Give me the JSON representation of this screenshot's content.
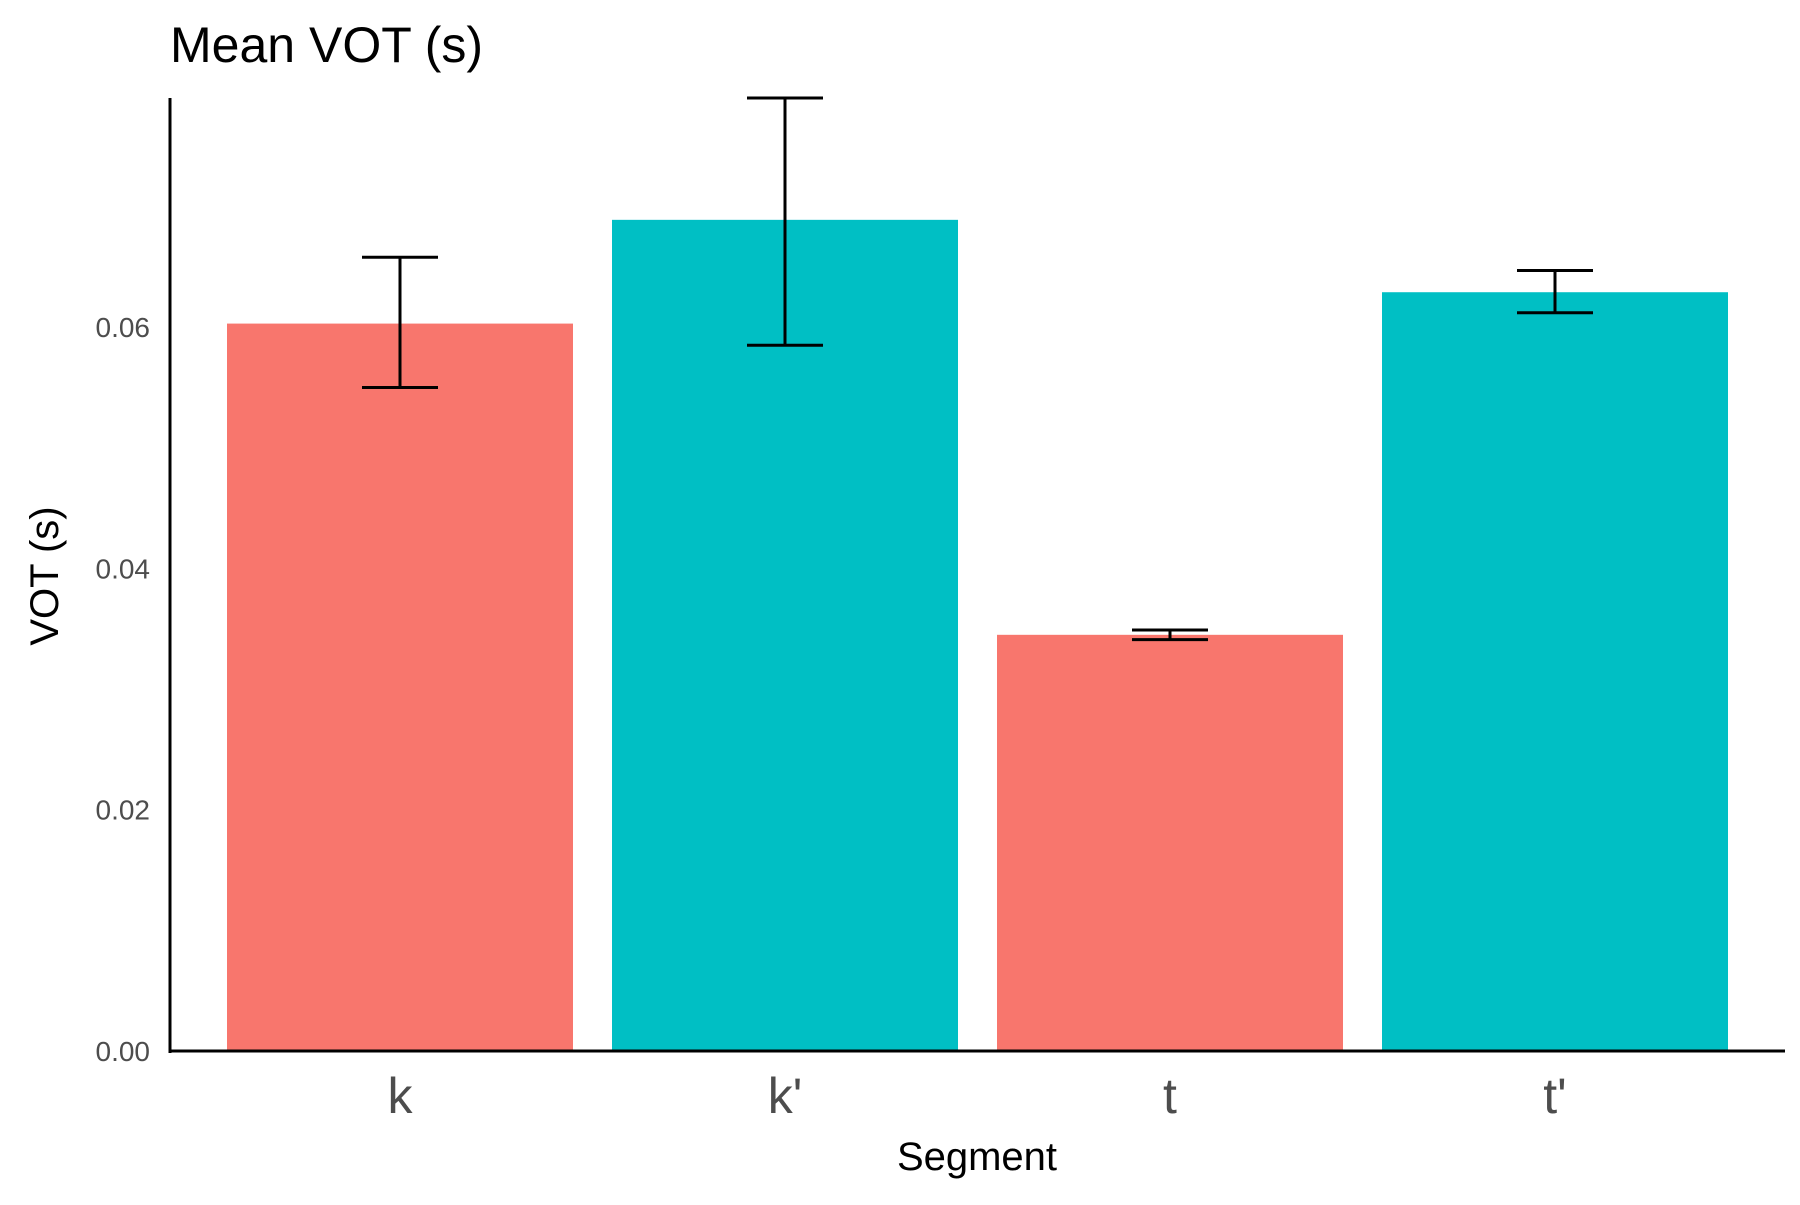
{
  "chart_data": {
    "type": "bar",
    "title": "Mean VOT (s)",
    "xlabel": "Segment",
    "ylabel": "VOT (s)",
    "categories": [
      "k",
      "k'",
      "t",
      "t'"
    ],
    "values": [
      0.0603,
      0.0689,
      0.0345,
      0.0629
    ],
    "error_low": [
      0.055,
      0.0585,
      0.0341,
      0.0612
    ],
    "error_high": [
      0.0658,
      0.079,
      0.0349,
      0.0647
    ],
    "bar_colors": [
      "#F8766D",
      "#00BFC4",
      "#F8766D",
      "#00BFC4"
    ],
    "ylim": [
      0,
      0.079
    ],
    "yticks": [
      0.0,
      0.02,
      0.04,
      0.06
    ],
    "ytick_labels": [
      "0.00",
      "0.02",
      "0.04",
      "0.06"
    ],
    "grid": false,
    "legend": "none"
  }
}
